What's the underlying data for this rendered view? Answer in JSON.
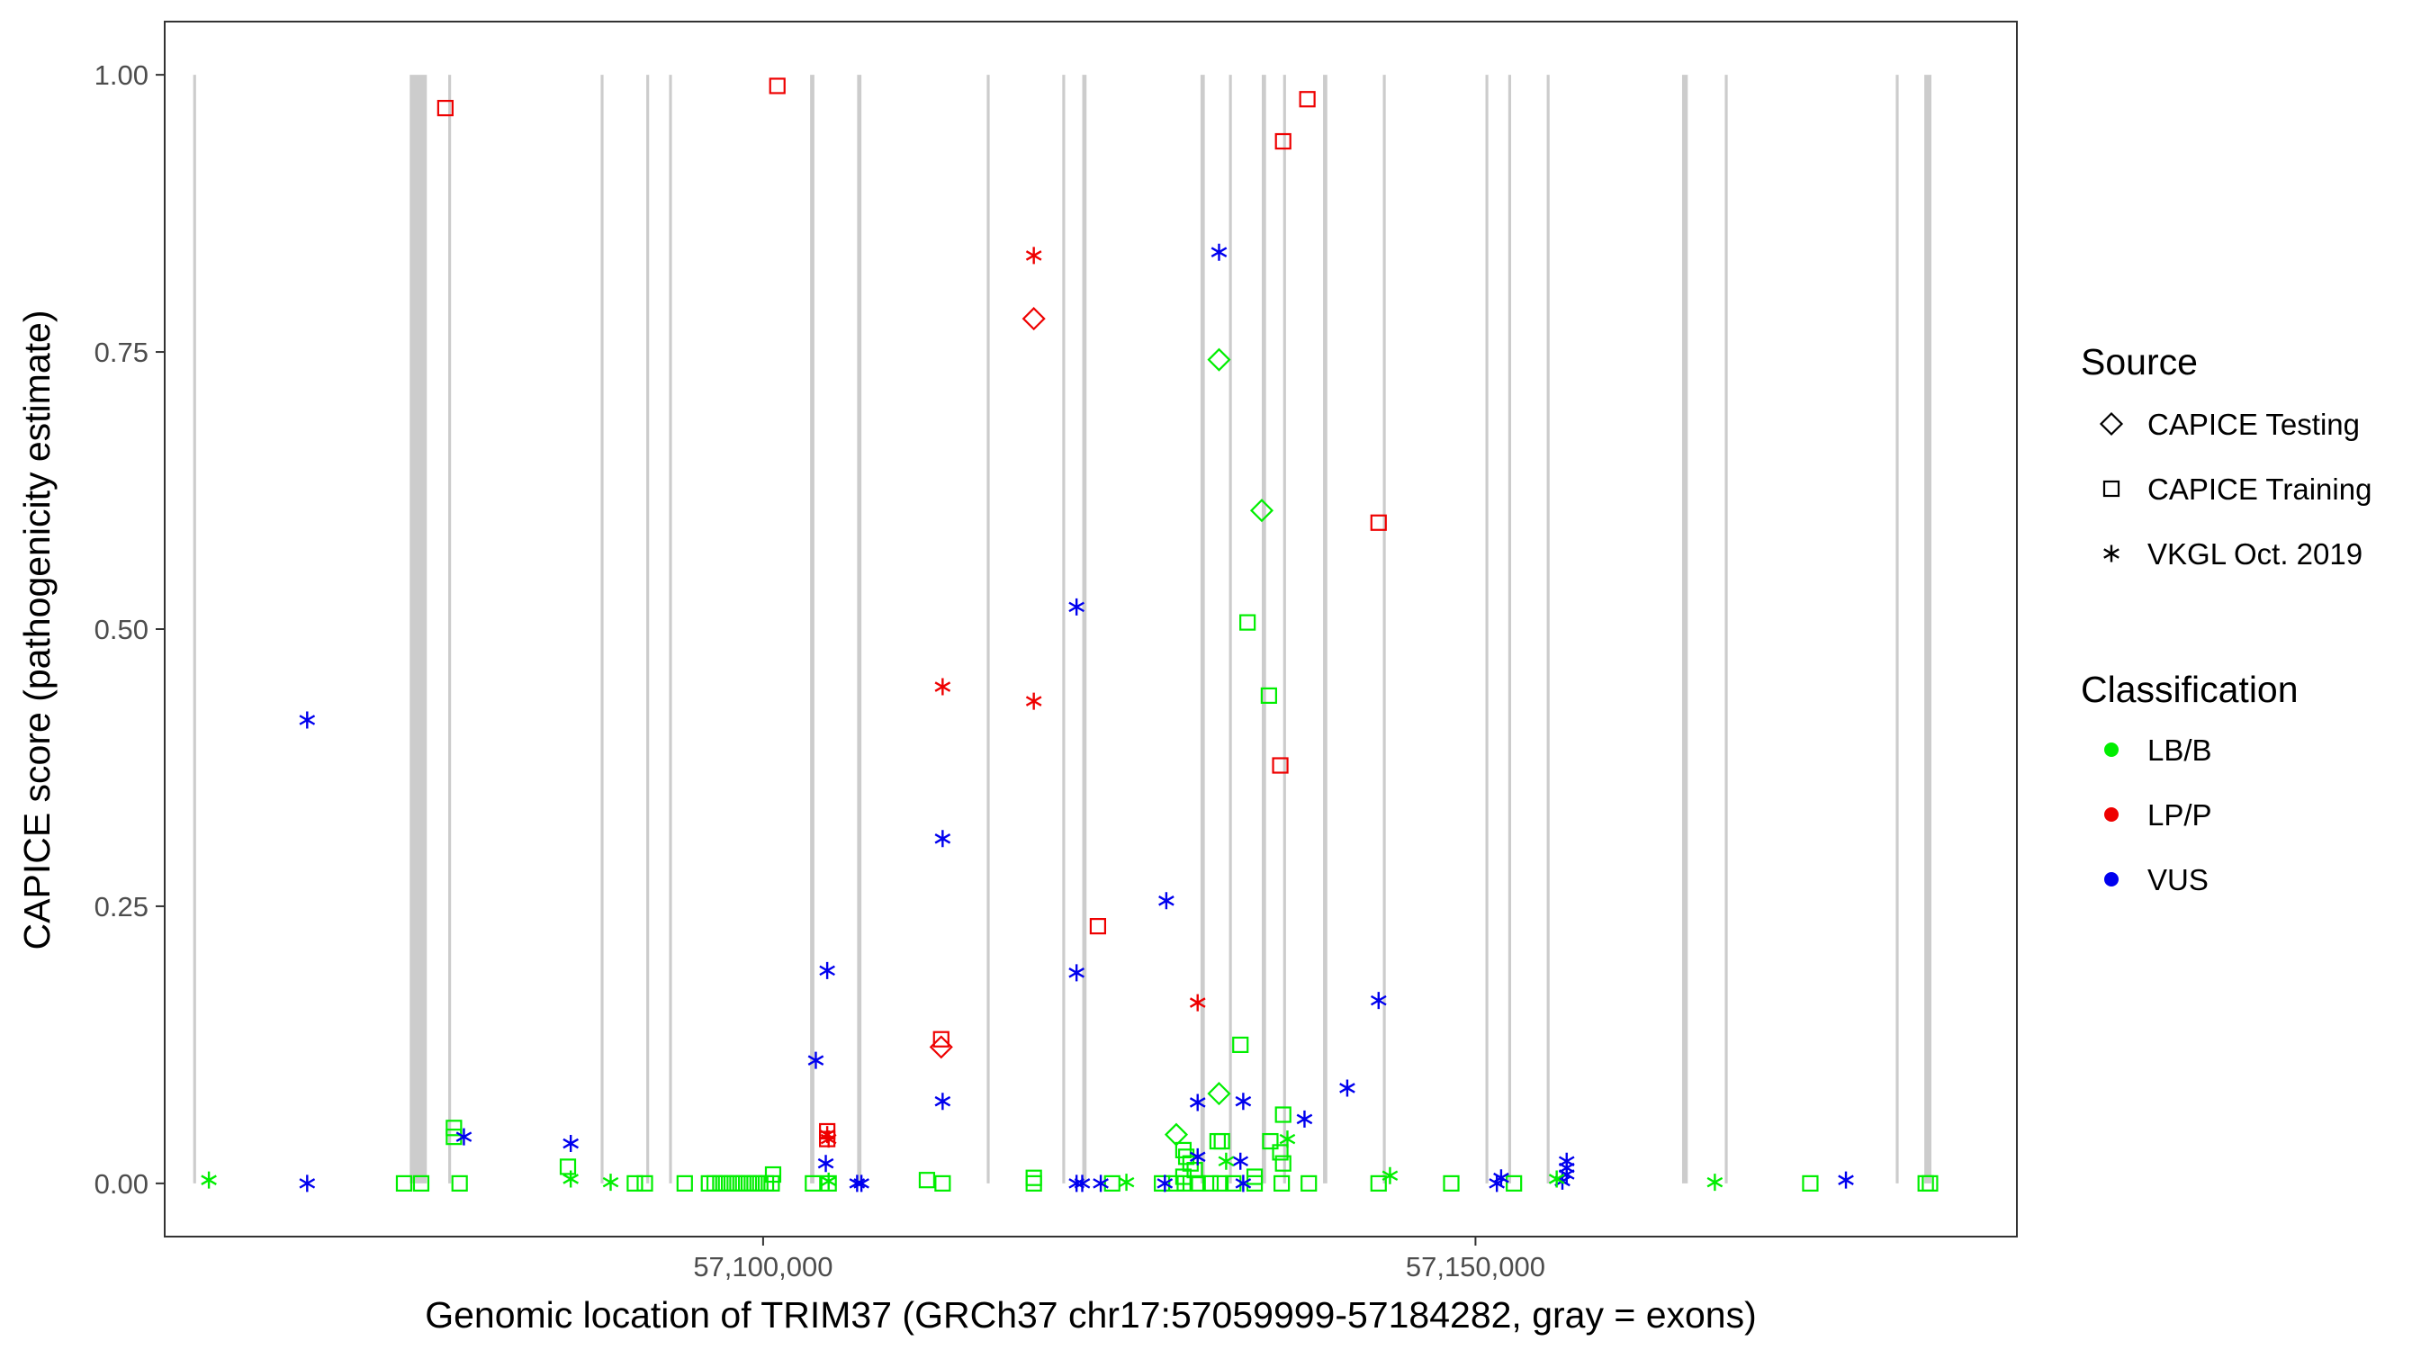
{
  "chart_data": {
    "type": "scatter",
    "xlabel": "Genomic location of TRIM37 (GRCh37 chr17:57059999-57184282, gray = exons)",
    "ylabel": "CAPICE score (pathogenicity estimate)",
    "xlim": [
      57058000,
      57188000
    ],
    "ylim": [
      -0.048,
      1.048
    ],
    "x_ticks": [
      57100000,
      57150000
    ],
    "x_tick_labels": [
      "57,100,000",
      "57,150,000"
    ],
    "y_ticks": [
      0,
      0.25,
      0.5,
      0.75,
      1.0
    ],
    "y_tick_labels": [
      "0.00",
      "0.25",
      "0.50",
      "0.75",
      "1.00"
    ],
    "grid": false,
    "legend_position": "right",
    "legend": {
      "source_title": "Source",
      "source_items": [
        {
          "shape": "diamond",
          "label": "CAPICE Testing"
        },
        {
          "shape": "square",
          "label": "CAPICE Training"
        },
        {
          "shape": "asterisk",
          "label": "VKGL Oct. 2019"
        }
      ],
      "class_title": "Classification",
      "class_items": [
        {
          "key": "LB/B",
          "label": "LB/B",
          "color": "#00ee00"
        },
        {
          "key": "LP/P",
          "label": "LP/P",
          "color": "#ee0000"
        },
        {
          "key": "VUS",
          "label": "VUS",
          "color": "#0000ee"
        }
      ]
    },
    "exon_color": "#cccccc",
    "exons": [
      [
        57060000,
        57060200
      ],
      [
        57075200,
        57076400
      ],
      [
        57077900,
        57078100
      ],
      [
        57088600,
        57088800
      ],
      [
        57091800,
        57092000
      ],
      [
        57093400,
        57093600
      ],
      [
        57103300,
        57103600
      ],
      [
        57106600,
        57106900
      ],
      [
        57115700,
        57115900
      ],
      [
        57121000,
        57121200
      ],
      [
        57122400,
        57122700
      ],
      [
        57130700,
        57131000
      ],
      [
        57132700,
        57132900
      ],
      [
        57135000,
        57135300
      ],
      [
        57136500,
        57136700
      ],
      [
        57139300,
        57139600
      ],
      [
        57143500,
        57143700
      ],
      [
        57150700,
        57150900
      ],
      [
        57152300,
        57152500
      ],
      [
        57155000,
        57155200
      ],
      [
        57164500,
        57164900
      ],
      [
        57167500,
        57167700
      ],
      [
        57179500,
        57179700
      ],
      [
        57181500,
        57182000
      ]
    ],
    "series": [
      {
        "source": "CAPICE Testing",
        "classification": "LP/P",
        "points": [
          [
            57119000,
            0.78
          ],
          [
            57112500,
            0.123
          ]
        ]
      },
      {
        "source": "CAPICE Testing",
        "classification": "LB/B",
        "points": [
          [
            57132000,
            0.743
          ],
          [
            57135000,
            0.607
          ],
          [
            57132000,
            0.081
          ],
          [
            57129000,
            0.044
          ]
        ]
      },
      {
        "source": "CAPICE Training",
        "classification": "LP/P",
        "points": [
          [
            57077700,
            0.97
          ],
          [
            57101000,
            0.99
          ],
          [
            57136500,
            0.94
          ],
          [
            57138200,
            0.978
          ],
          [
            57143200,
            0.596
          ],
          [
            57136300,
            0.377
          ],
          [
            57123500,
            0.232
          ],
          [
            57112500,
            0.13
          ],
          [
            57104500,
            0.047
          ],
          [
            57104500,
            0.04
          ]
        ]
      },
      {
        "source": "CAPICE Training",
        "classification": "LB/B",
        "points": [
          [
            57134000,
            0.506
          ],
          [
            57135500,
            0.44
          ],
          [
            57133500,
            0.125
          ],
          [
            57136500,
            0.062
          ],
          [
            57078300,
            0.05
          ],
          [
            57078300,
            0.042
          ],
          [
            57086300,
            0.015
          ],
          [
            57111500,
            0.003
          ],
          [
            57100700,
            0.008
          ],
          [
            57131900,
            0.038
          ],
          [
            57132200,
            0.038
          ],
          [
            57135600,
            0.038
          ],
          [
            57136300,
            0.028
          ],
          [
            57136500,
            0.018
          ],
          [
            57129500,
            0.03
          ],
          [
            57129700,
            0.024
          ],
          [
            57130000,
            0.018
          ],
          [
            57130300,
            0.012
          ],
          [
            57129500,
            0.006
          ],
          [
            57134500,
            0.006
          ],
          [
            57119000,
            0.005
          ],
          [
            57074800,
            0.0
          ],
          [
            57076000,
            0.0
          ],
          [
            57078700,
            0.0
          ],
          [
            57091000,
            0.0
          ],
          [
            57091700,
            0.0
          ],
          [
            57094500,
            0.0
          ],
          [
            57096200,
            0.0
          ],
          [
            57096600,
            0.0
          ],
          [
            57097000,
            0.0
          ],
          [
            57097400,
            0.0
          ],
          [
            57097800,
            0.0
          ],
          [
            57098200,
            0.0
          ],
          [
            57098600,
            0.0
          ],
          [
            57099000,
            0.0
          ],
          [
            57099400,
            0.0
          ],
          [
            57099800,
            0.0
          ],
          [
            57100200,
            0.0
          ],
          [
            57100600,
            0.0
          ],
          [
            57103500,
            0.0
          ],
          [
            57104600,
            0.0
          ],
          [
            57112600,
            0.0
          ],
          [
            57119000,
            0.0
          ],
          [
            57124500,
            0.0
          ],
          [
            57128000,
            0.0
          ],
          [
            57129000,
            0.0
          ],
          [
            57129600,
            0.0
          ],
          [
            57130500,
            0.0
          ],
          [
            57131400,
            0.0
          ],
          [
            57132100,
            0.0
          ],
          [
            57133000,
            0.0
          ],
          [
            57134500,
            0.0
          ],
          [
            57136400,
            0.0
          ],
          [
            57138300,
            0.0
          ],
          [
            57143200,
            0.0
          ],
          [
            57148300,
            0.0
          ],
          [
            57152700,
            0.0
          ],
          [
            57173500,
            0.0
          ],
          [
            57181600,
            0.0
          ],
          [
            57181900,
            0.0
          ]
        ]
      },
      {
        "source": "VKGL Oct. 2019",
        "classification": "LP/P",
        "points": [
          [
            57119000,
            0.837
          ],
          [
            57112600,
            0.448
          ],
          [
            57119000,
            0.435
          ],
          [
            57130500,
            0.163
          ],
          [
            57104500,
            0.044
          ],
          [
            57104600,
            0.04
          ]
        ]
      },
      {
        "source": "VKGL Oct. 2019",
        "classification": "VUS",
        "points": [
          [
            57132000,
            0.84
          ],
          [
            57122000,
            0.52
          ],
          [
            57068000,
            0.418
          ],
          [
            57112600,
            0.311
          ],
          [
            57128300,
            0.255
          ],
          [
            57104500,
            0.192
          ],
          [
            57122000,
            0.19
          ],
          [
            57143200,
            0.165
          ],
          [
            57103700,
            0.111
          ],
          [
            57141000,
            0.086
          ],
          [
            57112600,
            0.074
          ],
          [
            57130500,
            0.073
          ],
          [
            57133700,
            0.074
          ],
          [
            57138000,
            0.058
          ],
          [
            57079000,
            0.042
          ],
          [
            57086500,
            0.036
          ],
          [
            57130500,
            0.024
          ],
          [
            57133500,
            0.02
          ],
          [
            57104400,
            0.018
          ],
          [
            57156400,
            0.02
          ],
          [
            57156400,
            0.014
          ],
          [
            57156400,
            0.008
          ],
          [
            57068000,
            0.0
          ],
          [
            57106600,
            0.0
          ],
          [
            57106900,
            0.0
          ],
          [
            57122000,
            0.0
          ],
          [
            57122400,
            0.0
          ],
          [
            57123700,
            0.0
          ],
          [
            57128200,
            0.0
          ],
          [
            57133700,
            0.0
          ],
          [
            57151500,
            0.0
          ],
          [
            57151800,
            0.005
          ],
          [
            57156100,
            0.002
          ],
          [
            57176000,
            0.003
          ]
        ]
      },
      {
        "source": "VKGL Oct. 2019",
        "classification": "LB/B",
        "points": [
          [
            57061100,
            0.003
          ],
          [
            57086500,
            0.004
          ],
          [
            57089300,
            0.001
          ],
          [
            57104600,
            0.002
          ],
          [
            57125500,
            0.001
          ],
          [
            57132500,
            0.02
          ],
          [
            57136800,
            0.04
          ],
          [
            57144000,
            0.007
          ],
          [
            57155700,
            0.004
          ],
          [
            57166800,
            0.001
          ]
        ]
      }
    ]
  }
}
